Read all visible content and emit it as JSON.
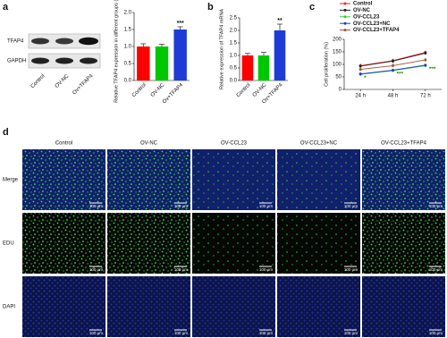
{
  "panels": [
    "a",
    "b",
    "c",
    "d"
  ],
  "blot": {
    "bands": [
      "TFAP4",
      "GAPDH"
    ],
    "lanes": [
      "Control",
      "OV-NC",
      "Ov+TFAP4"
    ]
  },
  "chart_data": [
    {
      "type": "bar",
      "ylabel": "Relative TFAP4 expression in different groups (fold)",
      "categories": [
        "Control",
        "OV-NC",
        "Ov+TFAP4"
      ],
      "values": [
        1.0,
        1.0,
        1.5
      ],
      "errors": [
        0.08,
        0.07,
        0.08
      ],
      "colors": [
        "#ff0000",
        "#00c800",
        "#1f3bd6"
      ],
      "value_annotations": [
        null,
        null,
        "***"
      ],
      "ylim": [
        0,
        2.0
      ],
      "yticks": [
        {
          "value": 0,
          "label": "0.0"
        },
        {
          "value": 0.5,
          "label": "0.5"
        },
        {
          "value": 1,
          "label": "1.0"
        },
        {
          "value": 1.5,
          "label": "1.5"
        },
        {
          "value": 2,
          "label": "2.0"
        }
      ]
    },
    {
      "type": "bar",
      "ylabel": "Relative expression of TFAP4 mRNA",
      "categories": [
        "Control",
        "OV-NC",
        "Ov+TFAP4"
      ],
      "values": [
        1.0,
        1.0,
        2.0
      ],
      "errors": [
        0.08,
        0.12,
        0.25
      ],
      "colors": [
        "#ff0000",
        "#00c800",
        "#1f3bd6"
      ],
      "value_annotations": [
        null,
        null,
        "**"
      ],
      "ylim": [
        0,
        2.5
      ],
      "yticks": [
        {
          "value": 0,
          "label": "0.0"
        },
        {
          "value": 0.5,
          "label": "0.5"
        },
        {
          "value": 1,
          "label": "1.0"
        },
        {
          "value": 1.5,
          "label": "1.5"
        },
        {
          "value": 2,
          "label": "2.0"
        },
        {
          "value": 2.5,
          "label": "2.5"
        }
      ]
    },
    {
      "type": "line",
      "ylabel": "Cell proliferation (%)",
      "categories": [
        "24 h",
        "48 h",
        "72 h"
      ],
      "series": [
        {
          "name": "Control",
          "color": "#ff2020",
          "values": [
            95,
            115,
            148
          ],
          "errors": [
            8,
            8,
            7
          ]
        },
        {
          "name": "OV-NC",
          "color": "#222222",
          "values": [
            93,
            113,
            145
          ],
          "errors": [
            8,
            8,
            7
          ]
        },
        {
          "name": "OV-CCL23",
          "color": "#3cc83c",
          "values": [
            60,
            75,
            95
          ],
          "errors": [
            6,
            6,
            6
          ]
        },
        {
          "name": "OV-CCL23+NC",
          "color": "#1f3bd6",
          "values": [
            62,
            77,
            97
          ],
          "errors": [
            6,
            6,
            6
          ]
        },
        {
          "name": "OV-CCL23+TFAP4",
          "color": "#a0522d",
          "values": [
            80,
            95,
            118
          ],
          "errors": [
            7,
            7,
            7
          ]
        }
      ],
      "value_annotations": [
        "*",
        "***",
        "***"
      ],
      "ylim": [
        0,
        200
      ],
      "yticks": [
        0,
        50,
        100,
        150,
        200
      ]
    }
  ],
  "image_grid": {
    "columns": [
      "Control",
      "OV-NC",
      "OV-CCL23",
      "OV-CCL23+NC",
      "OV-CCL23+TFAP4"
    ],
    "rows": [
      "Merge",
      "EDU",
      "DAPI"
    ],
    "scale_bar": "100 μm"
  }
}
